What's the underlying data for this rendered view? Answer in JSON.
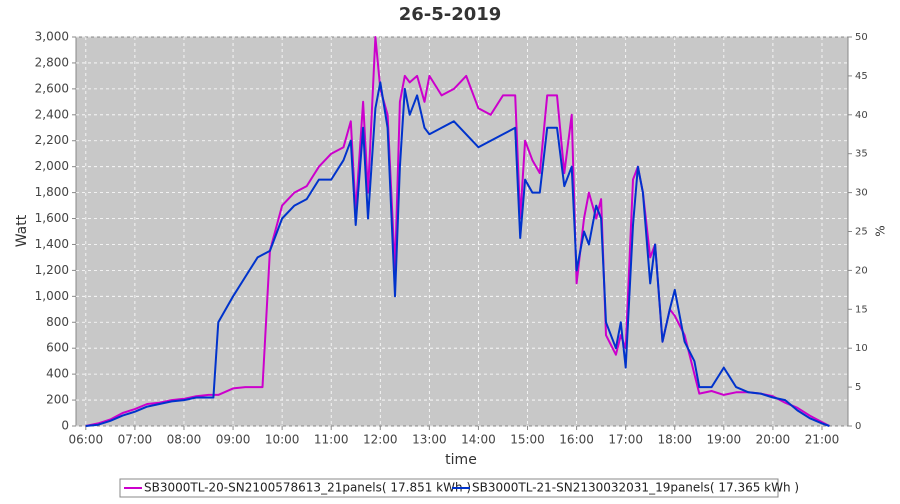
{
  "chart_data": {
    "type": "line",
    "title": "26-5-2019",
    "x_label": "time",
    "y_label": "Watt",
    "y2_label": "%",
    "x": [
      6.0,
      6.25,
      6.5,
      6.75,
      7.0,
      7.25,
      7.5,
      7.75,
      8.0,
      8.25,
      8.5,
      8.6,
      8.7,
      9.0,
      9.25,
      9.5,
      9.6,
      9.75,
      10.0,
      10.25,
      10.5,
      10.75,
      11.0,
      11.25,
      11.4,
      11.5,
      11.65,
      11.75,
      11.9,
      12.0,
      12.15,
      12.3,
      12.4,
      12.5,
      12.6,
      12.75,
      12.9,
      13.0,
      13.25,
      13.5,
      13.75,
      14.0,
      14.25,
      14.5,
      14.75,
      14.85,
      14.95,
      15.1,
      15.25,
      15.4,
      15.6,
      15.75,
      15.9,
      16.0,
      16.15,
      16.25,
      16.4,
      16.5,
      16.6,
      16.8,
      16.9,
      17.0,
      17.15,
      17.25,
      17.35,
      17.5,
      17.6,
      17.75,
      17.9,
      18.0,
      18.2,
      18.4,
      18.5,
      18.75,
      19.0,
      19.25,
      19.5,
      19.75,
      20.0,
      20.25,
      20.5,
      20.75,
      21.0,
      21.15
    ],
    "series": [
      {
        "name": "SB3000TL-20-SN2100578613_21panels( 17.851 kWh )",
        "color": "#cc00cc",
        "values": [
          0,
          20,
          50,
          100,
          130,
          170,
          180,
          200,
          210,
          230,
          240,
          240,
          240,
          290,
          300,
          300,
          300,
          1350,
          1700,
          1800,
          1850,
          2000,
          2100,
          2150,
          2350,
          1650,
          2500,
          1800,
          3000,
          2600,
          2400,
          1200,
          2500,
          2700,
          2650,
          2700,
          2500,
          2700,
          2550,
          2600,
          2700,
          2450,
          2400,
          2550,
          2550,
          1600,
          2200,
          2050,
          1950,
          2550,
          2550,
          1950,
          2400,
          1100,
          1600,
          1800,
          1600,
          1750,
          700,
          550,
          700,
          600,
          1900,
          2000,
          1800,
          1300,
          1400,
          650,
          900,
          850,
          700,
          400,
          250,
          270,
          240,
          260,
          260,
          250,
          230,
          180,
          140,
          80,
          30,
          0
        ]
      },
      {
        "name": "SB3000TL-21-SN2130032031_19panels( 17.365 kWh )",
        "color": "#0033cc",
        "values": [
          0,
          10,
          40,
          80,
          110,
          150,
          170,
          190,
          200,
          220,
          220,
          220,
          800,
          1000,
          1150,
          1300,
          1320,
          1350,
          1600,
          1700,
          1750,
          1900,
          1900,
          2050,
          2200,
          1550,
          2300,
          1600,
          2450,
          2650,
          2300,
          1000,
          2000,
          2600,
          2400,
          2550,
          2300,
          2250,
          2300,
          2350,
          2250,
          2150,
          2200,
          2250,
          2300,
          1450,
          1900,
          1800,
          1800,
          2300,
          2300,
          1850,
          2000,
          1200,
          1500,
          1400,
          1700,
          1600,
          800,
          600,
          800,
          450,
          1550,
          2000,
          1800,
          1100,
          1400,
          650,
          900,
          1050,
          650,
          500,
          300,
          300,
          450,
          300,
          260,
          250,
          220,
          200,
          120,
          60,
          20,
          0
        ]
      }
    ],
    "xlim": [
      5.8,
      21.53
    ],
    "xticks": [
      {
        "value": 6,
        "label": "06:00"
      },
      {
        "value": 7,
        "label": "07:00"
      },
      {
        "value": 8,
        "label": "08:00"
      },
      {
        "value": 9,
        "label": "09:00"
      },
      {
        "value": 10,
        "label": "10:00"
      },
      {
        "value": 11,
        "label": "11:00"
      },
      {
        "value": 12,
        "label": "12:00"
      },
      {
        "value": 13,
        "label": "13:00"
      },
      {
        "value": 14,
        "label": "14:00"
      },
      {
        "value": 15,
        "label": "15:00"
      },
      {
        "value": 16,
        "label": "16:00"
      },
      {
        "value": 17,
        "label": "17:00"
      },
      {
        "value": 18,
        "label": "18:00"
      },
      {
        "value": 19,
        "label": "19:00"
      },
      {
        "value": 20,
        "label": "20:00"
      },
      {
        "value": 21,
        "label": "21:00"
      }
    ],
    "ylim": [
      0,
      3000
    ],
    "yticks": [
      0,
      200,
      400,
      600,
      800,
      {
        "value": 1000,
        "label": "1,000"
      },
      {
        "value": 1200,
        "label": "1,200"
      },
      {
        "value": 1400,
        "label": "1,400"
      },
      {
        "value": 1600,
        "label": "1,600"
      },
      {
        "value": 1800,
        "label": "1,800"
      },
      {
        "value": 2000,
        "label": "2,000"
      },
      {
        "value": 2200,
        "label": "2,200"
      },
      {
        "value": 2400,
        "label": "2,400"
      },
      {
        "value": 2600,
        "label": "2,600"
      },
      {
        "value": 2800,
        "label": "2,800"
      },
      {
        "value": 3000,
        "label": "3,000"
      }
    ],
    "y2lim": [
      0,
      50
    ],
    "y2ticks": [
      0,
      5,
      10,
      15,
      20,
      25,
      30,
      35,
      40,
      45,
      50
    ],
    "grid": true
  }
}
